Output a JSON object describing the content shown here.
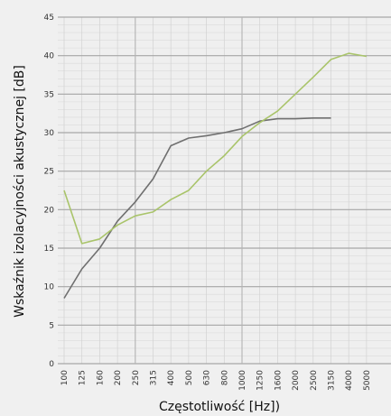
{
  "chart_data": {
    "type": "line",
    "title": "",
    "xlabel": "Częstotliwość [Hz])",
    "ylabel": "Wskaźnik izolacyjności akustycznej [dB]",
    "ylim": [
      0,
      45
    ],
    "yticks": [
      0,
      5,
      10,
      15,
      20,
      25,
      30,
      35,
      40,
      45
    ],
    "grid": true,
    "legend": "none",
    "categories": [
      "100",
      "125",
      "160",
      "200",
      "250",
      "315",
      "400",
      "500",
      "630",
      "800",
      "1000",
      "1250",
      "1600",
      "2000",
      "2500",
      "3150",
      "4000",
      "5000"
    ],
    "series": [
      {
        "color": "#6f6f6f",
        "values": [
          8.5,
          12.3,
          15.0,
          18.5,
          21.0,
          24.0,
          28.3,
          29.3,
          29.6,
          30.0,
          30.5,
          31.5,
          31.8,
          31.8,
          31.9,
          31.9,
          null,
          null
        ]
      },
      {
        "color": "#a9c46a",
        "values": [
          22.5,
          15.6,
          16.2,
          18.0,
          19.2,
          19.7,
          21.3,
          22.5,
          25.0,
          27.0,
          29.5,
          31.3,
          32.8,
          35.0,
          37.2,
          39.5,
          40.3,
          39.9
        ]
      }
    ]
  }
}
